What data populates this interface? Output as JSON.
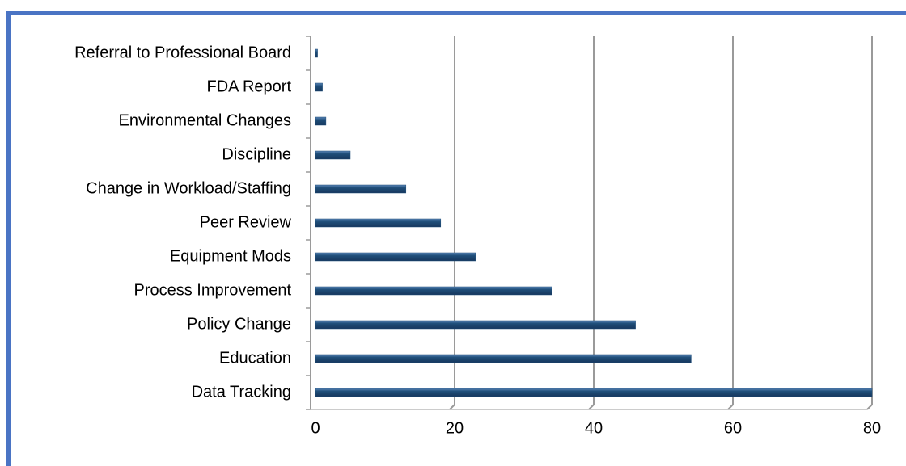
{
  "chart_data": {
    "type": "bar",
    "orientation": "horizontal",
    "categories": [
      "Referral to Professional Board",
      "FDA Report",
      "Environmental Changes",
      "Discipline",
      "Change in Workload/Staffing",
      "Peer Review",
      "Equipment Mods",
      "Process Improvement",
      "Policy Change",
      "Education",
      "Data Tracking"
    ],
    "values": [
      0.3,
      1,
      1.5,
      5,
      13,
      18,
      23,
      34,
      46,
      54,
      80
    ],
    "color": "#1f4e79",
    "xlim": [
      0,
      80
    ],
    "xticks": [
      0,
      20,
      40,
      60,
      80
    ],
    "grid": true
  }
}
